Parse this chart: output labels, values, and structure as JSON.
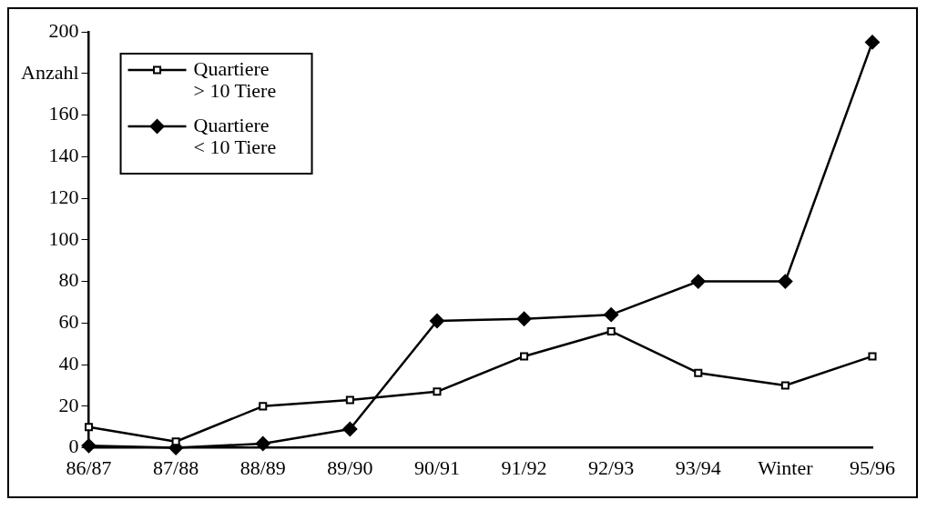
{
  "chart_data": {
    "type": "line",
    "categories": [
      "86/87",
      "87/88",
      "88/89",
      "89/90",
      "90/91",
      "91/92",
      "92/93",
      "93/94",
      "Winter",
      "95/96"
    ],
    "series": [
      {
        "name": "Quartiere > 10 Tiere",
        "color": "#000000",
        "marker": "square",
        "values": [
          10,
          3,
          20,
          23,
          27,
          44,
          56,
          36,
          30,
          44
        ]
      },
      {
        "name": "Quartiere < 10 Tiere",
        "color": "#000000",
        "marker": "diamond",
        "values": [
          1,
          0,
          2,
          9,
          61,
          62,
          64,
          80,
          80,
          195
        ]
      }
    ],
    "ylim": [
      0,
      200
    ],
    "yticks": [
      0,
      20,
      40,
      60,
      80,
      100,
      120,
      140,
      160,
      {
        "value": 180,
        "label": "Anzahl"
      },
      200
    ],
    "grid": false,
    "legend": "top left",
    "line_style": "solid"
  }
}
